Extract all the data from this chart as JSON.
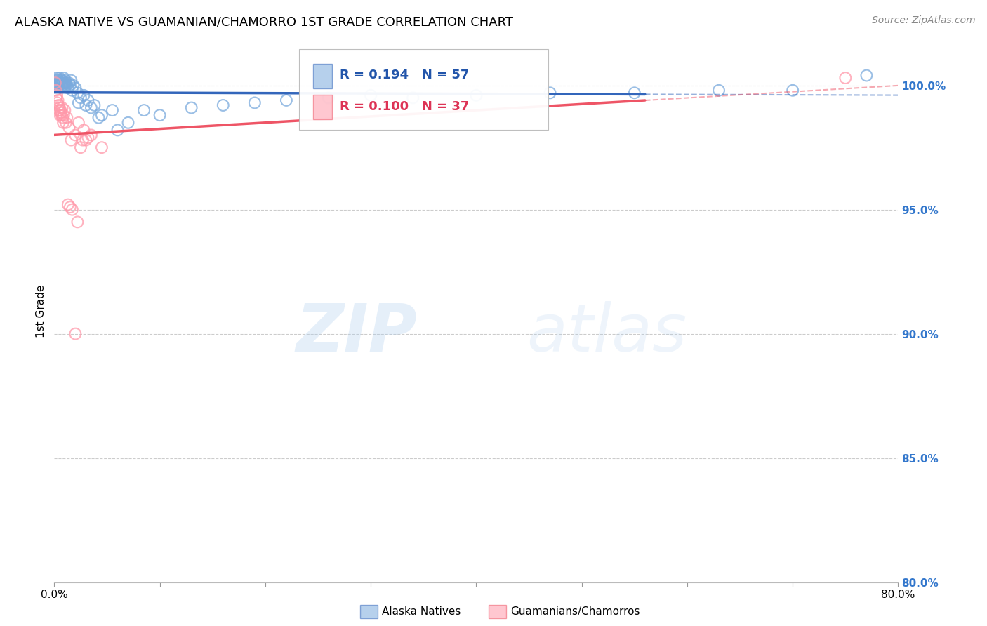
{
  "title": "ALASKA NATIVE VS GUAMANIAN/CHAMORRO 1ST GRADE CORRELATION CHART",
  "source": "Source: ZipAtlas.com",
  "ylabel": "1st Grade",
  "x_min": 0.0,
  "x_max": 80.0,
  "y_min": 80.0,
  "y_max": 101.8,
  "y_ticks": [
    80.0,
    85.0,
    90.0,
    95.0,
    100.0
  ],
  "x_tick_vals": [
    0.0,
    10.0,
    20.0,
    30.0,
    40.0,
    50.0,
    60.0,
    70.0,
    80.0
  ],
  "blue_color": "#7AAADD",
  "pink_color": "#FF99AA",
  "blue_line_color": "#3366BB",
  "pink_line_color": "#EE5566",
  "bottom_legend_blue": "Alaska Natives",
  "bottom_legend_pink": "Guamanians/Chamorros",
  "watermark_zip": "ZIP",
  "watermark_atlas": "atlas",
  "blue_x": [
    0.15,
    0.2,
    0.25,
    0.3,
    0.35,
    0.4,
    0.45,
    0.5,
    0.55,
    0.6,
    0.65,
    0.7,
    0.75,
    0.8,
    0.85,
    0.9,
    0.95,
    1.0,
    1.05,
    1.1,
    1.15,
    1.2,
    1.3,
    1.4,
    1.5,
    1.6,
    1.7,
    1.8,
    2.0,
    2.2,
    2.5,
    2.8,
    3.2,
    3.8,
    4.5,
    5.5,
    7.0,
    8.5,
    10.0,
    13.0,
    16.0,
    19.0,
    22.0,
    26.0,
    30.0,
    34.0,
    40.0,
    47.0,
    55.0,
    63.0,
    70.0,
    77.0,
    2.3,
    3.0,
    3.5,
    4.2,
    6.0
  ],
  "blue_y": [
    100.2,
    100.1,
    100.3,
    100.0,
    100.2,
    100.1,
    100.0,
    100.3,
    100.1,
    100.2,
    100.0,
    100.1,
    100.2,
    100.0,
    100.1,
    100.3,
    100.0,
    100.1,
    100.2,
    100.0,
    100.1,
    100.0,
    99.9,
    100.1,
    100.0,
    100.2,
    99.8,
    100.0,
    99.9,
    99.7,
    99.5,
    99.6,
    99.4,
    99.2,
    98.8,
    99.0,
    98.5,
    99.0,
    98.8,
    99.1,
    99.2,
    99.3,
    99.4,
    99.5,
    99.6,
    99.5,
    99.6,
    99.7,
    99.7,
    99.8,
    99.8,
    100.4,
    99.3,
    99.2,
    99.1,
    98.7,
    98.2
  ],
  "pink_x": [
    0.1,
    0.15,
    0.2,
    0.25,
    0.3,
    0.35,
    0.4,
    0.45,
    0.5,
    0.55,
    0.6,
    0.65,
    0.7,
    0.75,
    0.8,
    0.85,
    0.9,
    1.0,
    1.1,
    1.2,
    1.4,
    1.6,
    2.0,
    2.5,
    3.0,
    1.3,
    1.5,
    1.7,
    2.8,
    3.5,
    4.5,
    2.2,
    2.7,
    3.2,
    75.0,
    2.0,
    2.3
  ],
  "pink_y": [
    100.1,
    99.8,
    99.5,
    99.6,
    99.3,
    99.4,
    99.2,
    99.0,
    99.1,
    98.8,
    99.0,
    98.9,
    98.8,
    99.1,
    98.7,
    98.5,
    98.8,
    99.0,
    98.5,
    98.7,
    98.3,
    97.8,
    98.0,
    97.5,
    97.8,
    95.2,
    95.1,
    95.0,
    98.2,
    98.0,
    97.5,
    94.5,
    97.8,
    97.9,
    100.3,
    90.0,
    98.5
  ]
}
